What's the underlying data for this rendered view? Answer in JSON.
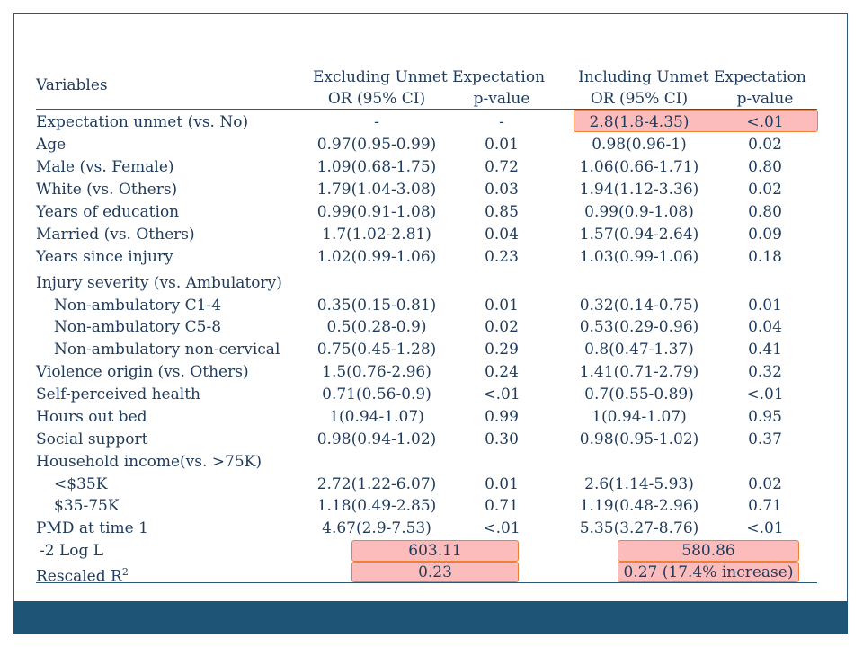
{
  "header": {
    "variables_label": "Variables",
    "group1": "Excluding Unmet Expectation",
    "group2": "Including Unmet Expectation",
    "or_label": "OR (95% CI)",
    "p_label": "p-value"
  },
  "rows": [
    {
      "label": "Expectation unmet (vs. No)",
      "or1": "-",
      "p1": "-",
      "or2": "2.8(1.8-4.35)",
      "p2": "<.01"
    },
    {
      "label": "Age",
      "or1": "0.97(0.95-0.99)",
      "p1": "0.01",
      "or2": "0.98(0.96-1)",
      "p2": "0.02"
    },
    {
      "label": "Male (vs. Female)",
      "or1": "1.09(0.68-1.75)",
      "p1": "0.72",
      "or2": "1.06(0.66-1.71)",
      "p2": "0.80"
    },
    {
      "label": "White (vs. Others)",
      "or1": "1.79(1.04-3.08)",
      "p1": "0.03",
      "or2": "1.94(1.12-3.36)",
      "p2": "0.02"
    },
    {
      "label": "Years of education",
      "or1": "0.99(0.91-1.08)",
      "p1": "0.85",
      "or2": "0.99(0.9-1.08)",
      "p2": "0.80"
    },
    {
      "label": "Married (vs. Others)",
      "or1": "1.7(1.02-2.81)",
      "p1": "0.04",
      "or2": "1.57(0.94-2.64)",
      "p2": "0.09"
    },
    {
      "label": "Years since injury",
      "or1": "1.02(0.99-1.06)",
      "p1": "0.23",
      "or2": "1.03(0.99-1.06)",
      "p2": "0.18"
    },
    {
      "label": "Injury severity (vs. Ambulatory)",
      "or1": "",
      "p1": "",
      "or2": "",
      "p2": ""
    },
    {
      "label": "Non-ambulatory C1-4",
      "or1": "0.35(0.15-0.81)",
      "p1": "0.01",
      "or2": "0.32(0.14-0.75)",
      "p2": "0.01"
    },
    {
      "label": "Non-ambulatory C5-8",
      "or1": "0.5(0.28-0.9)",
      "p1": "0.02",
      "or2": "0.53(0.29-0.96)",
      "p2": "0.04"
    },
    {
      "label": "Non-ambulatory non-cervical",
      "or1": "0.75(0.45-1.28)",
      "p1": "0.29",
      "or2": "0.8(0.47-1.37)",
      "p2": "0.41"
    },
    {
      "label": "Violence origin (vs. Others)",
      "or1": "1.5(0.76-2.96)",
      "p1": "0.24",
      "or2": "1.41(0.71-2.79)",
      "p2": "0.32"
    },
    {
      "label": "Self-perceived health",
      "or1": "0.71(0.56-0.9)",
      "p1": "<.01",
      "or2": "0.7(0.55-0.89)",
      "p2": "<.01"
    },
    {
      "label": "Hours out bed",
      "or1": "1(0.94-1.07)",
      "p1": "0.99",
      "or2": "1(0.94-1.07)",
      "p2": "0.95"
    },
    {
      "label": "Social support",
      "or1": "0.98(0.94-1.02)",
      "p1": "0.30",
      "or2": "0.98(0.95-1.02)",
      "p2": "0.37"
    },
    {
      "label": "Household income(vs. >75K)",
      "or1": "",
      "p1": "",
      "or2": "",
      "p2": ""
    },
    {
      "label": "<$35K",
      "or1": "2.72(1.22-6.07)",
      "p1": "0.01",
      "or2": "2.6(1.14-5.93)",
      "p2": "0.02"
    },
    {
      "label": "$35-75K",
      "or1": "1.18(0.49-2.85)",
      "p1": "0.71",
      "or2": "1.19(0.48-2.96)",
      "p2": "0.71"
    },
    {
      "label": "PMD at time 1",
      "or1": "4.67(2.9-7.53)",
      "p1": "<.01",
      "or2": "5.35(3.27-8.76)",
      "p2": "<.01"
    }
  ],
  "fit": {
    "loglik_label": "-2 Log L",
    "loglik1": "603.11",
    "loglik2": "580.86",
    "r2_label": "Rescaled R",
    "r2_sup": "2",
    "r2_1": "0.23",
    "r2_2": "0.27 (17.4% increase)"
  },
  "colors": {
    "text": "#1f3a5a",
    "highlight_fill": "#fdbcbc",
    "highlight_border": "#f07f36",
    "footer_bar": "#1e5577"
  }
}
